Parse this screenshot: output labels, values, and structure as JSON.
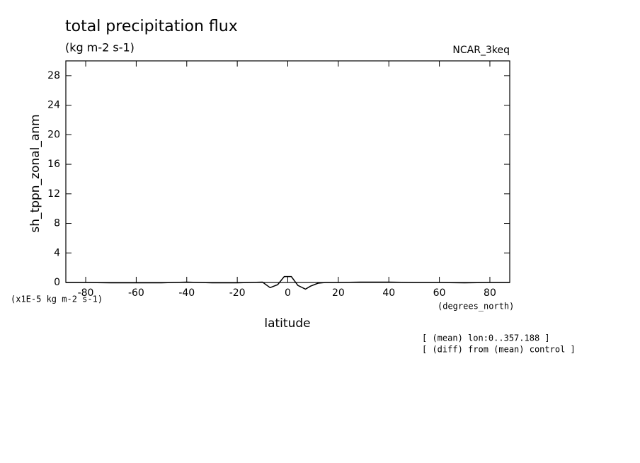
{
  "chart_data": {
    "type": "line",
    "title": "total precipitation flux",
    "subtitle": "(kg m-2 s-1)",
    "model_label": "NCAR_3keq",
    "y_label": "sh_tppn_zonal_anm",
    "y_scale_label": "(x1E-5 kg m-2 s-1)",
    "x_label": "latitude",
    "x_units": "(degrees_north)",
    "notes": [
      "[ (mean) lon:0..357.188 ]",
      "[ (diff) from (mean) control ]"
    ],
    "x": [
      -87.86,
      -80,
      -70,
      -60,
      -50,
      -40,
      -30,
      -20,
      -15,
      -10,
      -7,
      -4,
      -1.4,
      1.4,
      4,
      7,
      9,
      12,
      15,
      20,
      30,
      40,
      50,
      60,
      70,
      80,
      87.86
    ],
    "series": [
      {
        "name": "sh_tppn_zonal_anm",
        "color": "#000000",
        "values": [
          0,
          0,
          -0.05,
          -0.05,
          -0.05,
          0.05,
          -0.05,
          -0.05,
          0,
          0.05,
          -0.7,
          -0.3,
          0.8,
          0.8,
          -0.4,
          -0.9,
          -0.5,
          -0.1,
          0,
          0,
          0.05,
          0.05,
          0,
          0,
          -0.05,
          0,
          0
        ]
      }
    ],
    "xlim": [
      -87.86,
      87.86
    ],
    "ylim": [
      0,
      30
    ],
    "xticks": [
      -80,
      -60,
      -40,
      -20,
      0,
      20,
      40,
      60,
      80
    ],
    "yticks": [
      0,
      4,
      8,
      12,
      16,
      20,
      24,
      28
    ]
  }
}
